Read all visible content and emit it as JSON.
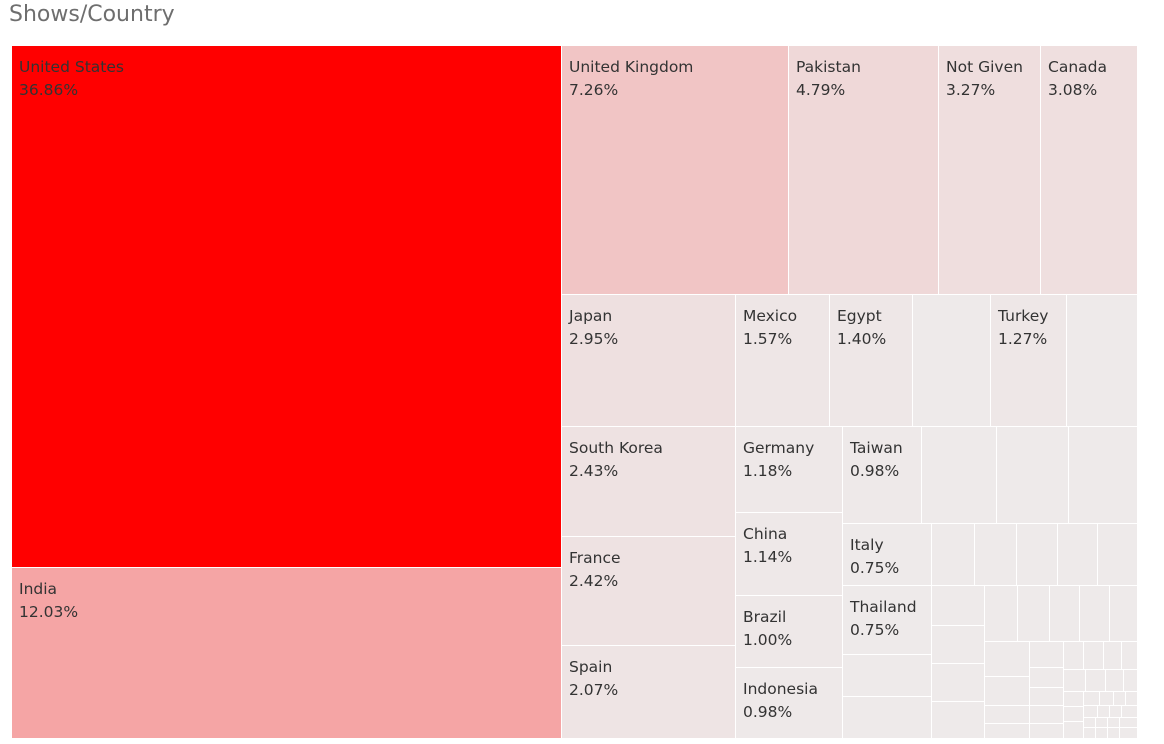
{
  "title": "Shows/Country",
  "chart_data": {
    "type": "treemap",
    "title": "Shows/Country",
    "measure": "percent of shows",
    "color_scale": {
      "low": "#efebeb",
      "high": "#ff0000"
    },
    "items": [
      {
        "name": "United States",
        "value": 36.86,
        "label": "36.86%",
        "color": "#ff0000"
      },
      {
        "name": "India",
        "value": 12.03,
        "label": "12.03%",
        "color": "#f5a5a5"
      },
      {
        "name": "United Kingdom",
        "value": 7.26,
        "label": "7.26%",
        "color": "#f1c5c5"
      },
      {
        "name": "Pakistan",
        "value": 4.79,
        "label": "4.79%",
        "color": "#efd8d8"
      },
      {
        "name": "Not Given",
        "value": 3.27,
        "label": "3.27%",
        "color": "#efdede"
      },
      {
        "name": "Canada",
        "value": 3.08,
        "label": "3.08%",
        "color": "#efdfdf"
      },
      {
        "name": "Japan",
        "value": 2.95,
        "label": "2.95%",
        "color": "#eee0e0"
      },
      {
        "name": "South Korea",
        "value": 2.43,
        "label": "2.43%",
        "color": "#eee2e2"
      },
      {
        "name": "France",
        "value": 2.42,
        "label": "2.42%",
        "color": "#eee2e2"
      },
      {
        "name": "Spain",
        "value": 2.07,
        "label": "2.07%",
        "color": "#eee4e4"
      },
      {
        "name": "Mexico",
        "value": 1.57,
        "label": "1.57%",
        "color": "#eee6e6"
      },
      {
        "name": "Egypt",
        "value": 1.4,
        "label": "1.40%",
        "color": "#eee7e7"
      },
      {
        "name": "Turkey",
        "value": 1.27,
        "label": "1.27%",
        "color": "#eee7e7"
      },
      {
        "name": "Germany",
        "value": 1.18,
        "label": "1.18%",
        "color": "#eee8e8"
      },
      {
        "name": "China",
        "value": 1.14,
        "label": "1.14%",
        "color": "#eee8e8"
      },
      {
        "name": "Brazil",
        "value": 1.0,
        "label": "1.00%",
        "color": "#eee8e8"
      },
      {
        "name": "Indonesia",
        "value": 0.98,
        "label": "0.98%",
        "color": "#eee9e9"
      },
      {
        "name": "Taiwan",
        "value": 0.98,
        "label": "0.98%",
        "color": "#eee9e9"
      },
      {
        "name": "Italy",
        "value": 0.75,
        "label": "0.75%",
        "color": "#eeeaea"
      },
      {
        "name": "Thailand",
        "value": 0.75,
        "label": "0.75%",
        "color": "#eeeaea"
      }
    ],
    "unlabeled_fill": "#eeeaea"
  }
}
